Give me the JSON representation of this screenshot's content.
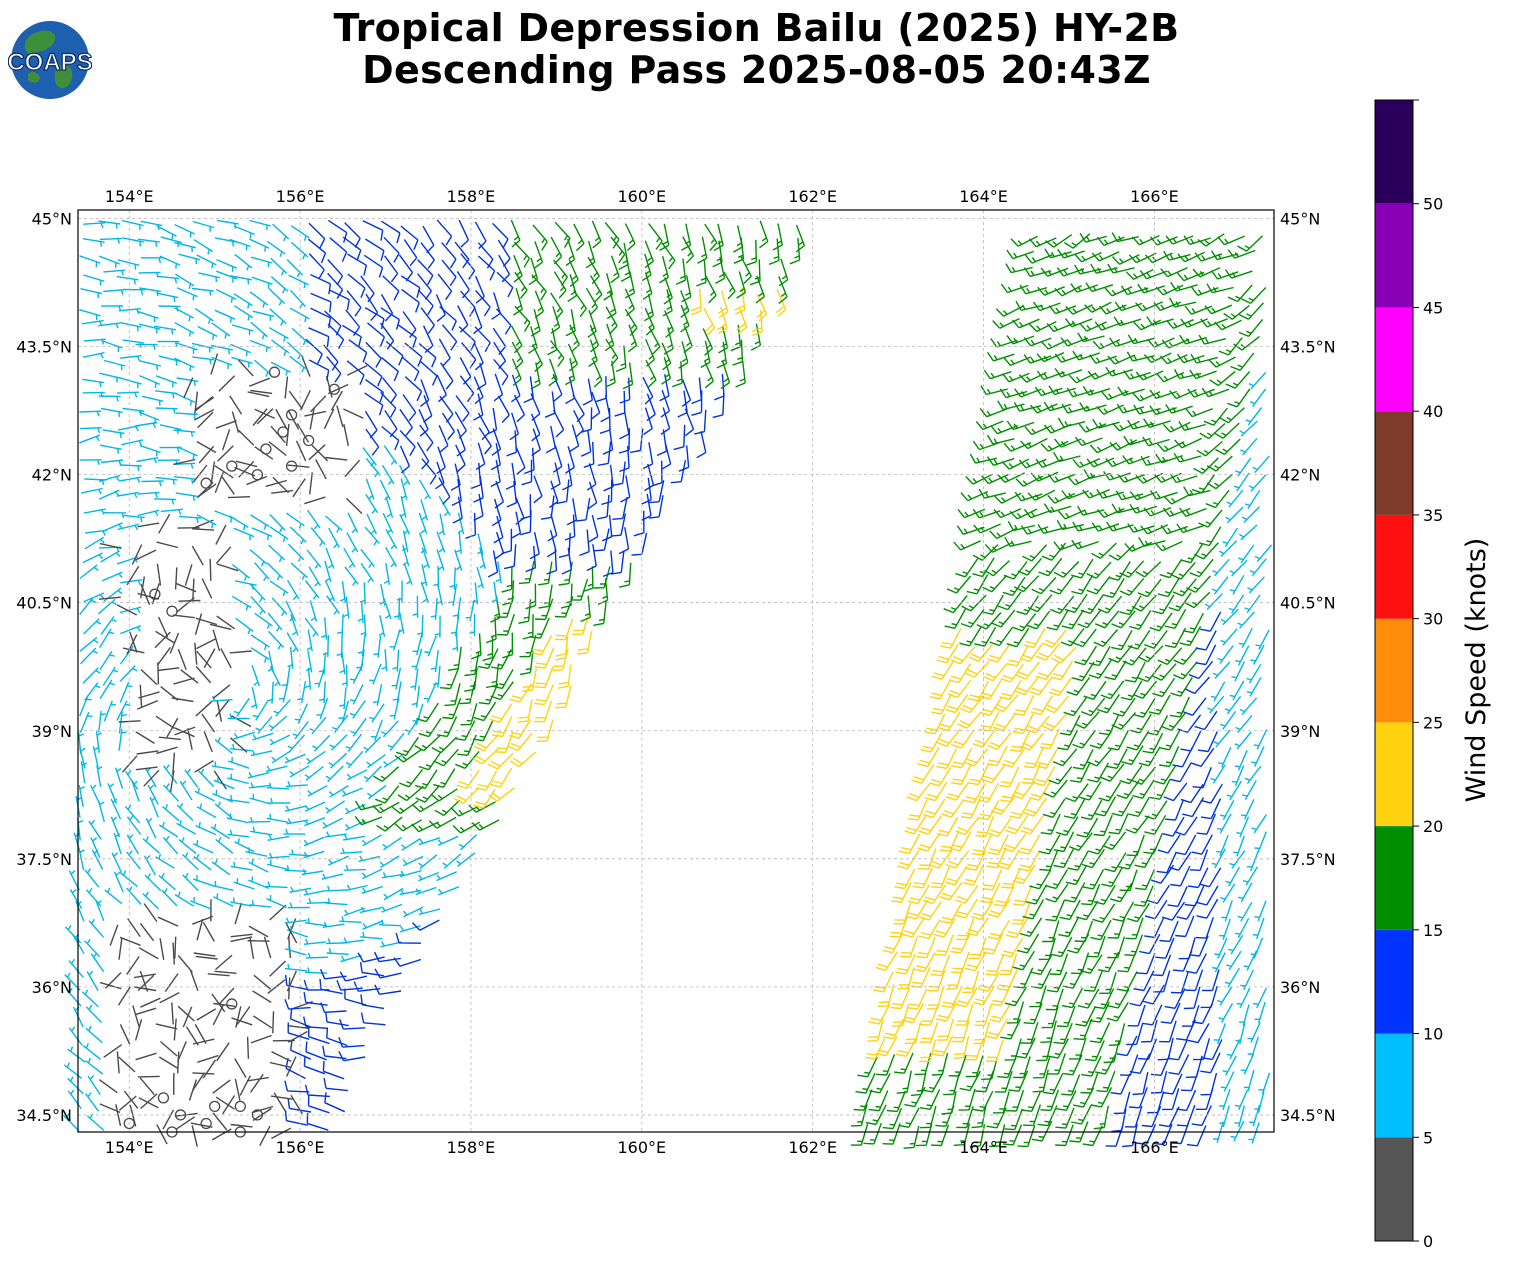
{
  "header": {
    "title_line1": "Tropical Depression Bailu (2025) HY-2B",
    "title_line2": "Descending Pass 2025-08-05 20:43Z",
    "logo_text": "COAPS"
  },
  "map": {
    "lon_range": [
      153.4,
      167.4
    ],
    "lat_range": [
      34.3,
      45.1
    ],
    "lon_ticks": [
      154,
      156,
      158,
      160,
      162,
      164,
      166
    ],
    "lon_tick_labels": [
      "154°E",
      "156°E",
      "158°E",
      "160°E",
      "162°E",
      "164°E",
      "166°E"
    ],
    "lat_ticks": [
      34.5,
      36,
      37.5,
      39,
      40.5,
      42,
      43.5,
      45
    ],
    "lat_tick_labels": [
      "34.5°N",
      "36°N",
      "37.5°N",
      "39°N",
      "40.5°N",
      "42°N",
      "43.5°N",
      "45°N"
    ],
    "grid": true,
    "swaths": [
      {
        "name": "west",
        "lon_edges_at_south": [
          153.4,
          156.4
        ],
        "lon_edges_at_north": [
          153.4,
          162.1
        ]
      },
      {
        "name": "east",
        "lon_edges_at_south": [
          162.6,
          167.4
        ],
        "lon_edges_at_north": [
          164.7,
          167.4
        ]
      }
    ],
    "calm_circles": [
      [
        155.7,
        43.2
      ],
      [
        156.4,
        43.0
      ],
      [
        155.9,
        42.7
      ],
      [
        155.8,
        42.5
      ],
      [
        156.1,
        42.4
      ],
      [
        155.6,
        42.3
      ],
      [
        155.9,
        42.1
      ],
      [
        155.5,
        42.0
      ],
      [
        155.2,
        42.1
      ],
      [
        154.9,
        41.9
      ],
      [
        154.3,
        40.6
      ],
      [
        154.5,
        40.4
      ],
      [
        155.2,
        35.8
      ],
      [
        154.4,
        34.7
      ],
      [
        154.6,
        34.5
      ],
      [
        154.9,
        34.4
      ],
      [
        155.0,
        34.6
      ],
      [
        155.3,
        34.6
      ],
      [
        155.5,
        34.5
      ],
      [
        154.0,
        34.4
      ],
      [
        154.5,
        34.3
      ],
      [
        155.3,
        34.3
      ]
    ]
  },
  "colorbar": {
    "label": "Wind Speed (knots)",
    "bounds": [
      0,
      5,
      10,
      15,
      20,
      25,
      30,
      35,
      40,
      45,
      50,
      55
    ],
    "tick_labels": [
      "0",
      "5",
      "10",
      "15",
      "20",
      "25",
      "30",
      "35",
      "40",
      "45",
      "50"
    ],
    "colors": [
      "#555555",
      "#00bfff",
      "#0033ff",
      "#008f00",
      "#ffd20f",
      "#ff8c0a",
      "#ff1010",
      "#7f3b2a",
      "#ff00ff",
      "#8a00b8",
      "#2b005c"
    ]
  },
  "style": {
    "barb_colors": {
      "calm": "#4a4a4a",
      "light": "#00b8e6",
      "moderate": "#0033dd",
      "fresh": "#008f00",
      "strong": "#ffd20f"
    }
  }
}
